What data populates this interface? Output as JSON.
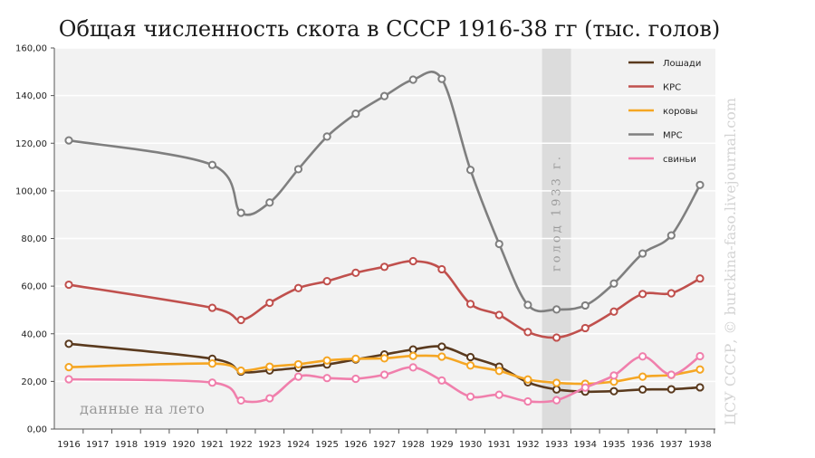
{
  "chart_data": {
    "type": "line",
    "title": "Общая численность скота в СССР 1916-38 гг (тыс. голов)",
    "categories": [
      "1916",
      "1917",
      "1918",
      "1919",
      "1920",
      "1921",
      "1922",
      "1923",
      "1924",
      "1925",
      "1926",
      "1927",
      "1928",
      "1929",
      "1930",
      "1931",
      "1932",
      "1933",
      "1934",
      "1935",
      "1936",
      "1937",
      "1938"
    ],
    "ylim": [
      0,
      160
    ],
    "yticks": [
      "0,00",
      "20,00",
      "40,00",
      "60,00",
      "80,00",
      "100,00",
      "120,00",
      "140,00",
      "160,00"
    ],
    "grid": true,
    "legend_position": "top-right",
    "series": [
      {
        "name": "Лошади",
        "color": "#5a3a1e",
        "values": [
          35.8,
          null,
          null,
          null,
          null,
          29.5,
          24.1,
          24.6,
          25.7,
          27.1,
          29.2,
          31.3,
          33.4,
          34.6,
          30.2,
          26.2,
          19.6,
          16.6,
          15.7,
          15.9,
          16.6,
          16.7,
          17.5
        ]
      },
      {
        "name": "КРС",
        "color": "#c0504d",
        "values": [
          60.6,
          null,
          null,
          null,
          null,
          50.9,
          45.8,
          53.0,
          59.2,
          62.1,
          65.6,
          68.1,
          70.5,
          67.1,
          52.5,
          47.9,
          40.7,
          38.4,
          42.4,
          49.3,
          56.7,
          57.0,
          63.2
        ]
      },
      {
        "name": "коровы",
        "color": "#f5a623",
        "values": [
          26.0,
          null,
          null,
          null,
          null,
          27.5,
          24.5,
          26.2,
          27.2,
          28.8,
          29.5,
          29.7,
          30.7,
          30.4,
          26.7,
          24.4,
          20.8,
          19.4,
          19.0,
          19.9,
          22.0,
          22.7,
          25.0
        ]
      },
      {
        "name": "МРС",
        "color": "#7f7f7f",
        "values": [
          121.2,
          null,
          null,
          null,
          null,
          110.9,
          90.8,
          95.1,
          109.1,
          122.8,
          132.4,
          139.8,
          146.7,
          147.0,
          108.8,
          77.7,
          52.1,
          50.2,
          51.9,
          61.1,
          73.7,
          81.3,
          102.5
        ]
      },
      {
        "name": "свиньи",
        "color": "#f07fac",
        "values": [
          20.9,
          null,
          null,
          null,
          null,
          19.5,
          12.0,
          12.9,
          22.0,
          21.4,
          21.1,
          22.8,
          25.9,
          20.4,
          13.6,
          14.4,
          11.6,
          12.1,
          17.4,
          22.5,
          30.5,
          22.8,
          30.6
        ]
      }
    ],
    "annotations": [
      {
        "text": "голод 1933 г.",
        "year": "1933"
      },
      {
        "text": "данные на лето"
      }
    ]
  },
  "colors": {
    "plot_bg": "#f2f2f2",
    "band": "#dcdcdc",
    "grid": "#ffffff"
  },
  "watermark": "ЦСУ СССР, © burckina-faso.livejournal.com"
}
